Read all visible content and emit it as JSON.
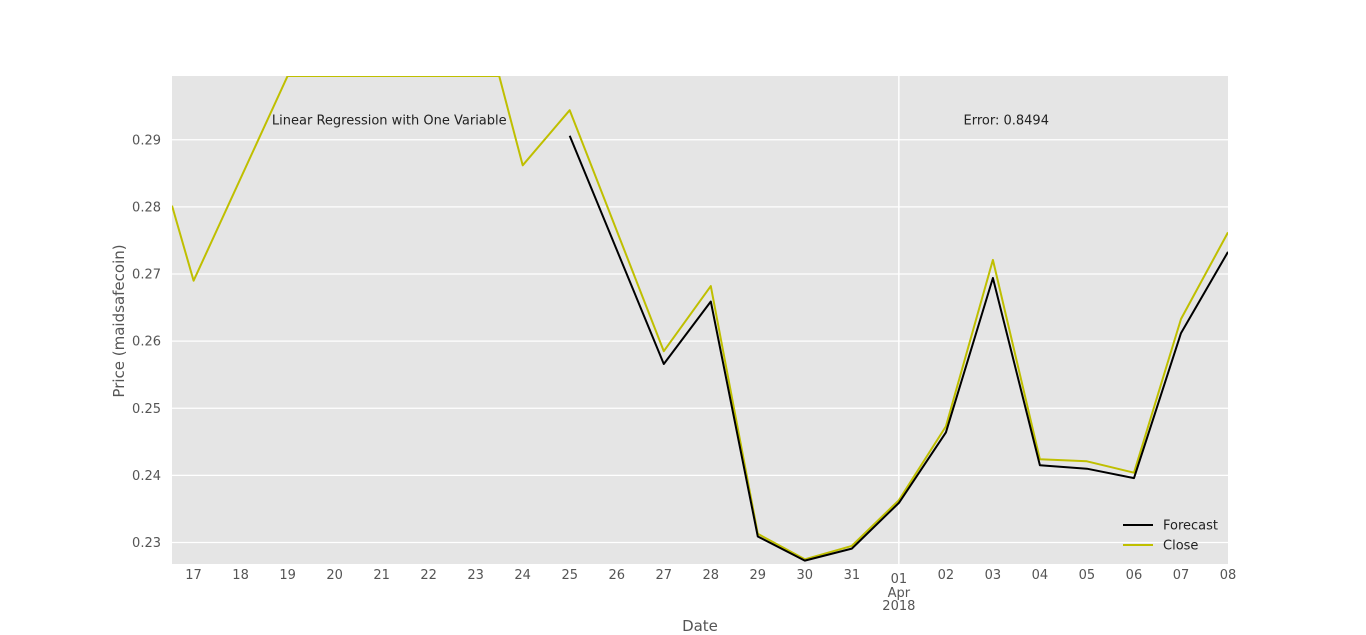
{
  "chart_data": {
    "type": "line",
    "title": "",
    "xlabel": "Date",
    "ylabel": "Price (maidsafecoin)",
    "x_ticks": [
      {
        "x": "2018-03-17",
        "label": "17"
      },
      {
        "x": "2018-03-18",
        "label": "18"
      },
      {
        "x": "2018-03-19",
        "label": "19"
      },
      {
        "x": "2018-03-20",
        "label": "20"
      },
      {
        "x": "2018-03-21",
        "label": "21"
      },
      {
        "x": "2018-03-22",
        "label": "22"
      },
      {
        "x": "2018-03-23",
        "label": "23"
      },
      {
        "x": "2018-03-24",
        "label": "24"
      },
      {
        "x": "2018-03-25",
        "label": "25"
      },
      {
        "x": "2018-03-26",
        "label": "26"
      },
      {
        "x": "2018-03-27",
        "label": "27"
      },
      {
        "x": "2018-03-28",
        "label": "28"
      },
      {
        "x": "2018-03-29",
        "label": "29"
      },
      {
        "x": "2018-03-30",
        "label": "30"
      },
      {
        "x": "2018-03-31",
        "label": "31"
      },
      {
        "x": "2018-04-01",
        "label": "01",
        "sub": [
          "Apr",
          "2018"
        ]
      },
      {
        "x": "2018-04-02",
        "label": "02"
      },
      {
        "x": "2018-04-03",
        "label": "03"
      },
      {
        "x": "2018-04-04",
        "label": "04"
      },
      {
        "x": "2018-04-05",
        "label": "05"
      },
      {
        "x": "2018-04-06",
        "label": "06"
      },
      {
        "x": "2018-04-07",
        "label": "07"
      },
      {
        "x": "2018-04-08",
        "label": "08"
      }
    ],
    "y_ticks": [
      {
        "value": 0.23,
        "label": "0.23"
      },
      {
        "value": 0.24,
        "label": "0.24"
      },
      {
        "value": 0.25,
        "label": "0.25"
      },
      {
        "value": 0.26,
        "label": "0.26"
      },
      {
        "value": 0.27,
        "label": "0.27"
      },
      {
        "value": 0.28,
        "label": "0.28"
      },
      {
        "value": 0.29,
        "label": "0.29"
      }
    ],
    "xlim": [
      "2018-03-16 13:00",
      "2018-04-08"
    ],
    "ylim": [
      0.2268,
      0.2995
    ],
    "grid": true,
    "vertical_marker": "2018-04-01",
    "series": [
      {
        "name": "Forecast",
        "color": "#000000",
        "points": [
          {
            "x": "2018-03-25",
            "y": 0.2906
          },
          {
            "x": "2018-03-27",
            "y": 0.2566
          },
          {
            "x": "2018-03-28",
            "y": 0.2659
          },
          {
            "x": "2018-03-29",
            "y": 0.2309
          },
          {
            "x": "2018-03-30",
            "y": 0.2273
          },
          {
            "x": "2018-03-31",
            "y": 0.2291
          },
          {
            "x": "2018-04-01",
            "y": 0.2359
          },
          {
            "x": "2018-04-02",
            "y": 0.2464
          },
          {
            "x": "2018-04-03",
            "y": 0.2694
          },
          {
            "x": "2018-04-04",
            "y": 0.2415
          },
          {
            "x": "2018-04-05",
            "y": 0.241
          },
          {
            "x": "2018-04-06",
            "y": 0.2396
          },
          {
            "x": "2018-04-07",
            "y": 0.2612
          },
          {
            "x": "2018-04-08",
            "y": 0.2733
          }
        ]
      },
      {
        "name": "Close",
        "color": "#bfbf00",
        "points": [
          {
            "x": "2018-03-16 13:00",
            "y": 0.2802
          },
          {
            "x": "2018-03-17",
            "y": 0.269
          },
          {
            "x": "2018-03-19",
            "y": 0.2995
          },
          {
            "x": "2018-03-23 12:00",
            "y": 0.2995
          },
          {
            "x": "2018-03-24",
            "y": 0.2862
          },
          {
            "x": "2018-03-25",
            "y": 0.2944
          },
          {
            "x": "2018-03-27",
            "y": 0.2585
          },
          {
            "x": "2018-03-28",
            "y": 0.2682
          },
          {
            "x": "2018-03-29",
            "y": 0.2313
          },
          {
            "x": "2018-03-30",
            "y": 0.2275
          },
          {
            "x": "2018-03-31",
            "y": 0.2295
          },
          {
            "x": "2018-04-01",
            "y": 0.2363
          },
          {
            "x": "2018-04-02",
            "y": 0.2473
          },
          {
            "x": "2018-04-03",
            "y": 0.2721
          },
          {
            "x": "2018-04-04",
            "y": 0.2424
          },
          {
            "x": "2018-04-05",
            "y": 0.2421
          },
          {
            "x": "2018-04-06",
            "y": 0.2404
          },
          {
            "x": "2018-04-07",
            "y": 0.2633
          },
          {
            "x": "2018-04-08",
            "y": 0.2762
          }
        ]
      }
    ],
    "annotations": [
      {
        "text": "Linear Regression with One Variable",
        "x": "2018-03-18 16:00",
        "y": 0.2923
      },
      {
        "text": "Error: 0.8494",
        "x": "2018-04-02 09:00",
        "y": 0.2923
      }
    ],
    "legend": {
      "position": "bottom-right",
      "entries": [
        "Forecast",
        "Close"
      ]
    },
    "colors": {
      "plot_background": "#e5e5e5",
      "grid": "#ffffff",
      "forecast": "#000000",
      "close": "#bfbf00"
    }
  }
}
